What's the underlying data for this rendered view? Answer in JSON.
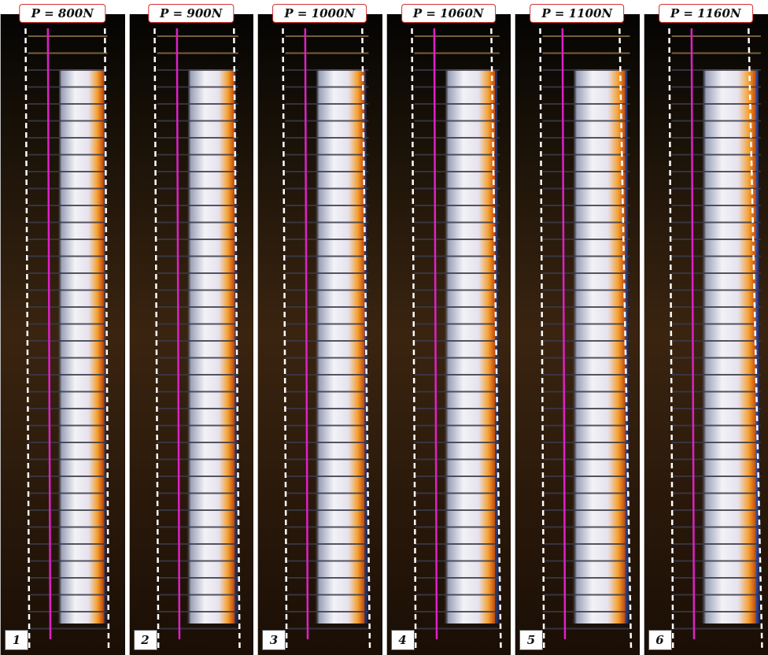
{
  "panels": [
    {
      "number": "1",
      "load_label": "P = 800N"
    },
    {
      "number": "2",
      "load_label": "P = 900N"
    },
    {
      "number": "3",
      "load_label": "P = 1000N"
    },
    {
      "number": "4",
      "load_label": "P = 1060N"
    },
    {
      "number": "5",
      "load_label": "P = 1100N"
    },
    {
      "number": "6",
      "load_label": "P = 1160N"
    }
  ],
  "colors": {
    "label_border": "#d23030",
    "magenta_line": "#e020c8",
    "dashed_outline": "#ffffff",
    "background": "#0a0806"
  }
}
